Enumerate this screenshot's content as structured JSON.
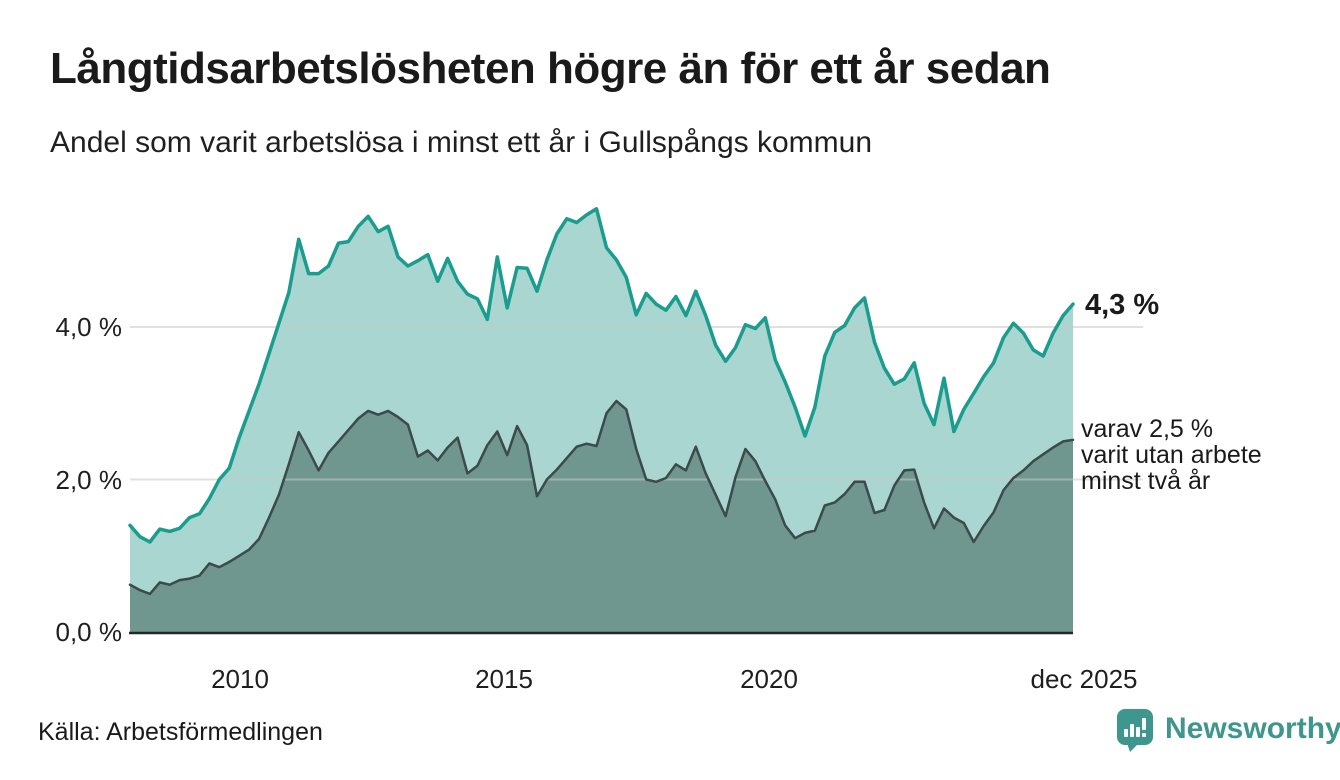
{
  "header": {
    "title": "Långtidsarbetslösheten högre än för ett år sedan",
    "subtitle": "Andel som varit arbetslösa i minst ett år i Gullspångs kommun"
  },
  "annotations": {
    "latest_primary": "4,3 %",
    "secondary": [
      "varav 2,5 %",
      "varit utan arbete",
      "minst två år"
    ]
  },
  "axes": {
    "y_ticks": [
      "4,0 %",
      "2,0 %",
      "0,0 %"
    ],
    "x_ticks": [
      "2010",
      "2015",
      "2020",
      "dec 2025"
    ]
  },
  "source": "Källa: Arbetsförmedlingen",
  "branding": "Newsworthy",
  "colors": {
    "primary_line": "#1a9c8e",
    "primary_fill": "#a9d6d0",
    "secondary_line": "#3b4a4a",
    "secondary_fill": "#6f968f",
    "gridline": "#c8c8c8",
    "baseline": "#262626",
    "brand_teal": "#3f968e",
    "text": "#1a1a1a"
  },
  "chart_data": {
    "type": "area",
    "title": "Långtidsarbetslösheten högre än för ett år sedan",
    "subtitle": "Andel som varit arbetslösa i minst ett år i Gullspångs kommun",
    "unit": "%",
    "x_range": [
      "2008",
      "dec 2025"
    ],
    "x_tick_labels": [
      "2010",
      "2015",
      "2020",
      "dec 2025"
    ],
    "y_axis": {
      "min": 0,
      "max": 5.6,
      "gridlines": [
        2,
        4
      ],
      "tick_labels": [
        "0,0 %",
        "2,0 %",
        "4,0 %"
      ]
    },
    "legend_position": "annotated-right",
    "series": [
      {
        "name": "Andel arbetslösa minst ett år",
        "latest_value": 4.3,
        "latest_label": "4,3 %",
        "values": [
          1.4,
          1.25,
          1.18,
          1.35,
          1.32,
          1.36,
          1.5,
          1.55,
          1.75,
          2.0,
          2.15,
          2.55,
          2.9,
          3.25,
          3.65,
          4.05,
          4.45,
          5.15,
          4.7,
          4.7,
          4.8,
          5.1,
          5.12,
          5.32,
          5.45,
          5.25,
          5.32,
          4.92,
          4.8,
          4.87,
          4.95,
          4.6,
          4.9,
          4.6,
          4.43,
          4.37,
          4.1,
          4.92,
          4.25,
          4.78,
          4.77,
          4.47,
          4.88,
          5.22,
          5.42,
          5.37,
          5.47,
          5.55,
          5.04,
          4.88,
          4.65,
          4.16,
          4.44,
          4.3,
          4.22,
          4.4,
          4.15,
          4.47,
          4.15,
          3.76,
          3.55,
          3.73,
          4.03,
          3.98,
          4.12,
          3.57,
          3.28,
          2.95,
          2.57,
          2.95,
          3.62,
          3.93,
          4.02,
          4.25,
          4.38,
          3.8,
          3.46,
          3.25,
          3.32,
          3.53,
          3.0,
          2.72,
          3.33,
          2.63,
          2.92,
          3.13,
          3.35,
          3.53,
          3.86,
          4.05,
          3.92,
          3.7,
          3.62,
          3.92,
          4.15,
          4.3
        ]
      },
      {
        "name": "varav utan arbete minst två år",
        "latest_value": 2.5,
        "latest_label": "varav 2,5 % varit utan arbete minst två år",
        "values": [
          0.62,
          0.55,
          0.5,
          0.65,
          0.62,
          0.68,
          0.7,
          0.74,
          0.9,
          0.85,
          0.92,
          1.0,
          1.08,
          1.22,
          1.5,
          1.8,
          2.2,
          2.62,
          2.38,
          2.12,
          2.35,
          2.5,
          2.65,
          2.8,
          2.9,
          2.85,
          2.9,
          2.82,
          2.72,
          2.3,
          2.38,
          2.25,
          2.42,
          2.55,
          2.08,
          2.18,
          2.45,
          2.63,
          2.32,
          2.7,
          2.45,
          1.78,
          2.0,
          2.13,
          2.28,
          2.43,
          2.47,
          2.44,
          2.87,
          3.03,
          2.92,
          2.4,
          2.0,
          1.97,
          2.02,
          2.2,
          2.12,
          2.43,
          2.08,
          1.8,
          1.52,
          2.03,
          2.4,
          2.24,
          1.98,
          1.74,
          1.4,
          1.23,
          1.3,
          1.33,
          1.66,
          1.7,
          1.81,
          1.97,
          1.97,
          1.56,
          1.6,
          1.92,
          2.12,
          2.13,
          1.7,
          1.36,
          1.62,
          1.5,
          1.43,
          1.18,
          1.39,
          1.57,
          1.86,
          2.02,
          2.12,
          2.24,
          2.33,
          2.42,
          2.5,
          2.52
        ]
      }
    ]
  }
}
